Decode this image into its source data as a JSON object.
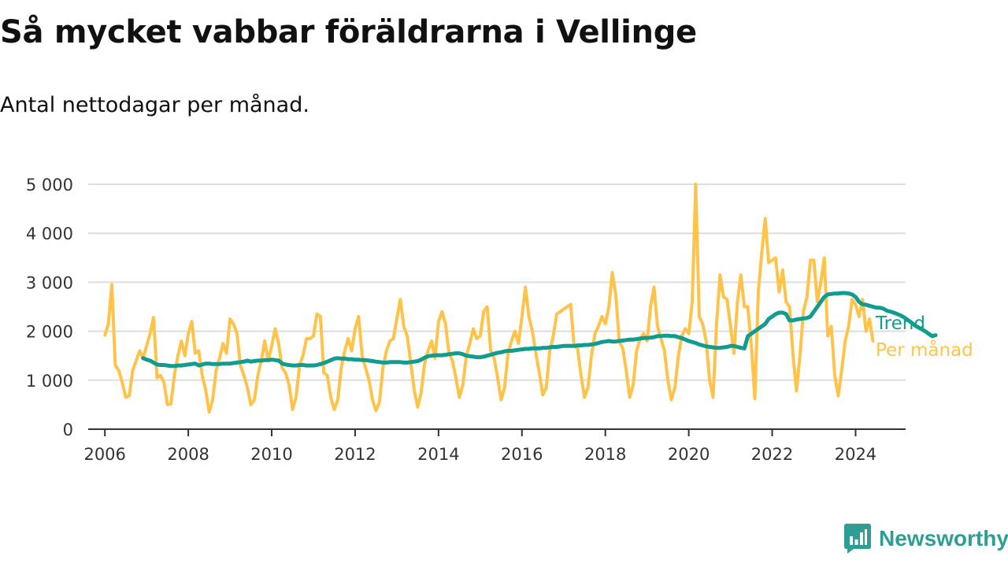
{
  "colors": {
    "per_month": "#FFC34A",
    "trend": "#119C8F",
    "grid": "#DDDDDD",
    "axis": "#333333",
    "brand": "#2E9E95"
  },
  "brand": {
    "name": "Newsworthy",
    "icon": "bar-chart-speech-bubble-icon"
  },
  "chart_data": {
    "type": "line",
    "title": "Så mycket vabbar föräldrarna i Vellinge",
    "subtitle": "Antal nettodagar per månad.",
    "xlabel": "",
    "ylabel": "",
    "xlim": [
      2005.6,
      2025.2
    ],
    "ylim": [
      0,
      5000
    ],
    "x_ticks": [
      2006,
      2008,
      2010,
      2012,
      2014,
      2016,
      2018,
      2020,
      2022,
      2024
    ],
    "x_tick_labels": [
      "2006",
      "2008",
      "2010",
      "2012",
      "2014",
      "2016",
      "2018",
      "2020",
      "2022",
      "2024"
    ],
    "y_ticks": [
      0,
      1000,
      2000,
      3000,
      4000,
      5000
    ],
    "y_tick_labels": [
      "0",
      "1 000",
      "2 000",
      "3 000",
      "4 000",
      "5 000"
    ],
    "grid": true,
    "legend": "right, at line ends",
    "series": [
      {
        "name": "Per månad",
        "color": "#FFC34A",
        "x_start": 2006.0,
        "x_step_months": 1,
        "values": [
          1920,
          2150,
          2950,
          1300,
          1200,
          950,
          650,
          680,
          1200,
          1400,
          1600,
          1450,
          1700,
          1950,
          2280,
          1050,
          1100,
          950,
          500,
          520,
          1100,
          1500,
          1800,
          1500,
          1950,
          2200,
          1550,
          1600,
          1100,
          800,
          350,
          600,
          1200,
          1450,
          1750,
          1550,
          2250,
          2150,
          1950,
          1300,
          1100,
          850,
          500,
          600,
          1100,
          1400,
          1800,
          1400,
          1700,
          2050,
          1750,
          1250,
          1150,
          900,
          400,
          650,
          1300,
          1500,
          1850,
          1850,
          1900,
          2350,
          2300,
          1150,
          1100,
          650,
          400,
          600,
          1250,
          1600,
          1850,
          1600,
          2050,
          2300,
          1500,
          1250,
          1000,
          600,
          380,
          550,
          1250,
          1600,
          1800,
          1850,
          2250,
          2650,
          2100,
          1900,
          1350,
          800,
          450,
          750,
          1350,
          1600,
          1800,
          1450,
          2200,
          2400,
          2150,
          1550,
          1400,
          1050,
          650,
          900,
          1500,
          1750,
          2050,
          1850,
          1900,
          2400,
          2500,
          1600,
          1450,
          1050,
          600,
          850,
          1550,
          1800,
          2000,
          1750,
          2300,
          2900,
          2300,
          2000,
          1550,
          1150,
          700,
          850,
          1600,
          1900,
          2350,
          2400,
          2450,
          2500,
          2550,
          1700,
          1650,
          1100,
          650,
          850,
          1500,
          1950,
          2100,
          2300,
          2150,
          2500,
          3200,
          2750,
          1800,
          1650,
          1200,
          650,
          900,
          1600,
          1850,
          1950,
          1800,
          2500,
          2900,
          2100,
          1850,
          1600,
          1000,
          600,
          850,
          1500,
          1900,
          2050,
          1950,
          2600,
          5000,
          2300,
          2150,
          1800,
          1000,
          650,
          2150,
          3150,
          2700,
          2650,
          2100,
          1550,
          2600,
          3150,
          2500,
          2500,
          1700,
          620,
          2800,
          3600,
          4300,
          3400,
          3450,
          3500,
          2800,
          3250,
          2600,
          2500,
          1500,
          780,
          1500,
          2400,
          2700,
          3450,
          3450,
          2600,
          3000,
          3500,
          1900,
          2100,
          1100,
          680,
          1200,
          1800,
          2100,
          2650,
          2550,
          2300,
          2650,
          2000,
          2250,
          1800
        ]
      },
      {
        "name": "Trend",
        "color": "#119C8F",
        "x_start": 2006.917,
        "x_step_months": 1,
        "values": [
          1450,
          1420,
          1400,
          1360,
          1320,
          1310,
          1310,
          1300,
          1290,
          1290,
          1300,
          1300,
          1310,
          1320,
          1330,
          1340,
          1300,
          1320,
          1340,
          1340,
          1330,
          1330,
          1330,
          1340,
          1340,
          1340,
          1350,
          1360,
          1370,
          1380,
          1400,
          1380,
          1390,
          1400,
          1400,
          1410,
          1410,
          1420,
          1410,
          1400,
          1340,
          1320,
          1310,
          1300,
          1300,
          1310,
          1310,
          1300,
          1300,
          1300,
          1310,
          1330,
          1350,
          1380,
          1410,
          1440,
          1450,
          1440,
          1440,
          1430,
          1430,
          1420,
          1420,
          1410,
          1410,
          1400,
          1390,
          1380,
          1370,
          1360,
          1360,
          1370,
          1370,
          1370,
          1370,
          1360,
          1360,
          1370,
          1380,
          1390,
          1420,
          1460,
          1490,
          1500,
          1510,
          1510,
          1510,
          1520,
          1530,
          1540,
          1550,
          1550,
          1530,
          1500,
          1490,
          1480,
          1470,
          1470,
          1480,
          1500,
          1520,
          1540,
          1560,
          1570,
          1590,
          1600,
          1600,
          1610,
          1620,
          1630,
          1640,
          1640,
          1650,
          1650,
          1650,
          1660,
          1660,
          1670,
          1680,
          1680,
          1690,
          1700,
          1700,
          1700,
          1700,
          1710,
          1710,
          1720,
          1720,
          1730,
          1740,
          1760,
          1780,
          1790,
          1800,
          1790,
          1790,
          1800,
          1810,
          1820,
          1830,
          1830,
          1840,
          1850,
          1860,
          1860,
          1870,
          1880,
          1900,
          1900,
          1910,
          1910,
          1900,
          1900,
          1880,
          1860,
          1830,
          1800,
          1780,
          1760,
          1730,
          1710,
          1690,
          1680,
          1670,
          1660,
          1660,
          1670,
          1680,
          1700,
          1700,
          1680,
          1660,
          1650,
          1900,
          1950,
          2000,
          2050,
          2100,
          2150,
          2250,
          2300,
          2350,
          2380,
          2380,
          2350,
          2220,
          2220,
          2240,
          2250,
          2260,
          2270,
          2300,
          2400,
          2500,
          2600,
          2700,
          2750,
          2760,
          2770,
          2770,
          2780,
          2780,
          2770,
          2750,
          2700,
          2600,
          2550,
          2540,
          2520,
          2500,
          2480,
          2480,
          2460,
          2420,
          2400,
          2380,
          2350,
          2320,
          2280,
          2230,
          2180,
          2120,
          2080,
          2040,
          2000,
          1950,
          1900,
          1920
        ]
      }
    ]
  }
}
